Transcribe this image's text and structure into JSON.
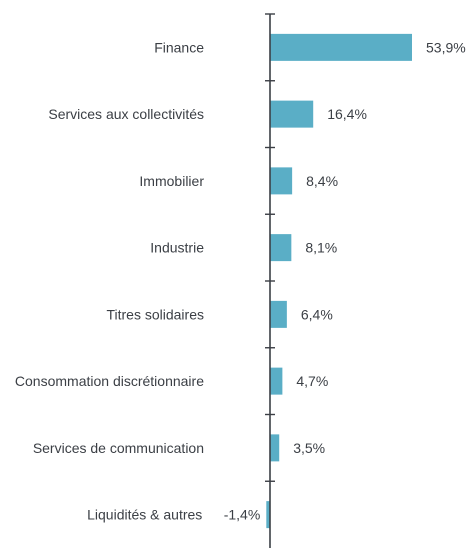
{
  "chart_data": {
    "type": "bar",
    "orientation": "horizontal",
    "categories": [
      "Finance",
      "Services aux collectivités",
      "Immobilier",
      "Industrie",
      "Titres solidaires",
      "Consommation discrétionnaire",
      "Services de communication",
      "Liquidités & autres"
    ],
    "values": [
      53.9,
      16.4,
      8.4,
      8.1,
      6.4,
      4.7,
      3.5,
      -1.4
    ],
    "value_labels": [
      "53,9%",
      "16,4%",
      "8,4%",
      "8,1%",
      "6,4%",
      "4,7%",
      "3,5%",
      "-1,4%"
    ],
    "title": "",
    "xlabel": "",
    "ylabel": "",
    "grid": false,
    "bar_color": "#5aaec6",
    "axis_color": "#3b3f45",
    "text_color": "#3b3f45"
  }
}
